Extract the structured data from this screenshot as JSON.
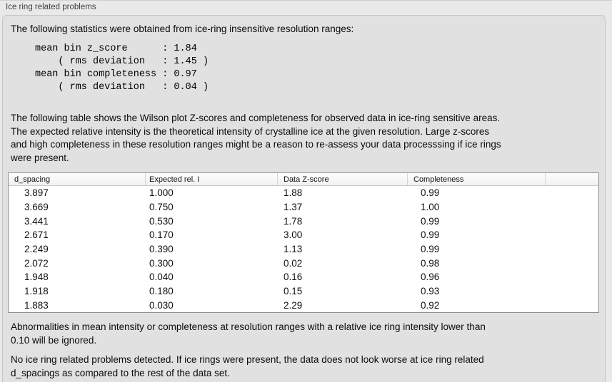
{
  "panel": {
    "title": "Ice ring related problems"
  },
  "intro": "The following statistics were obtained from ice-ring insensitive resolution ranges:",
  "stats_block": "mean bin z_score      : 1.84\n    ( rms deviation   : 1.45 )\nmean bin completeness : 0.97\n    ( rms deviation   : 0.04 )",
  "table_description": "The following table shows the Wilson plot Z-scores and completeness for observed data in ice-ring sensitive areas.\nThe expected relative intensity is the theoretical intensity of crystalline ice at the given resolution. Large z-scores\nand high completeness in these resolution ranges might be a reason to re-assess your data processsing if ice rings\nwere present.",
  "table": {
    "columns": [
      "d_spacing",
      "Expected rel. I",
      "Data Z-score",
      "Completeness"
    ],
    "rows": [
      {
        "d_spacing": "3.897",
        "expected_rel_i": "1.000",
        "data_z_score": "1.88",
        "completeness": "0.99"
      },
      {
        "d_spacing": "3.669",
        "expected_rel_i": "0.750",
        "data_z_score": "1.37",
        "completeness": "1.00"
      },
      {
        "d_spacing": "3.441",
        "expected_rel_i": "0.530",
        "data_z_score": "1.78",
        "completeness": "0.99"
      },
      {
        "d_spacing": "2.671",
        "expected_rel_i": "0.170",
        "data_z_score": "3.00",
        "completeness": "0.99"
      },
      {
        "d_spacing": "2.249",
        "expected_rel_i": "0.390",
        "data_z_score": "1.13",
        "completeness": "0.99"
      },
      {
        "d_spacing": "2.072",
        "expected_rel_i": "0.300",
        "data_z_score": "0.02",
        "completeness": "0.98"
      },
      {
        "d_spacing": "1.948",
        "expected_rel_i": "0.040",
        "data_z_score": "0.16",
        "completeness": "0.96"
      },
      {
        "d_spacing": "1.918",
        "expected_rel_i": "0.180",
        "data_z_score": "0.15",
        "completeness": "0.93"
      },
      {
        "d_spacing": "1.883",
        "expected_rel_i": "0.030",
        "data_z_score": "2.29",
        "completeness": "0.92"
      }
    ]
  },
  "ignore_note": "Abnormalities in mean intensity or completeness at resolution ranges with a relative ice ring intensity lower than\n0.10 will be ignored.",
  "conclusion": "No ice ring related problems detected. If ice rings were present, the data does not look worse at ice ring related\nd_spacings as compared to the rest of the data set.",
  "colors": {
    "page_background": "#e9e9e9",
    "panel_background": "#e1e1e1",
    "panel_border": "#c6c6c6",
    "table_border": "#909090",
    "table_header_background": "#f6f6f6",
    "row_background": "#ffffff",
    "text": "#0c0c0c"
  }
}
